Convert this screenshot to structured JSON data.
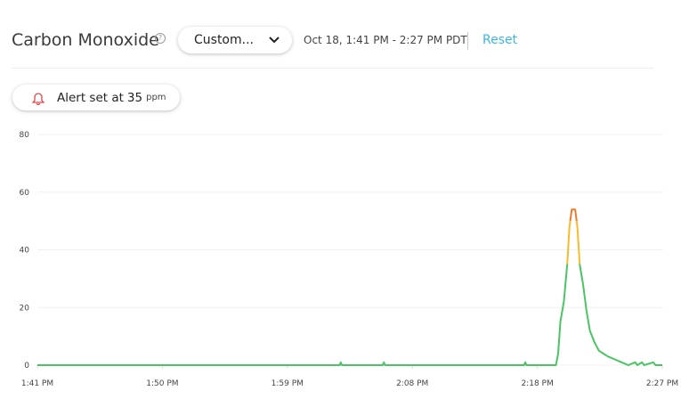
{
  "header": {
    "title": "Carbon Monoxide",
    "help_icon": "question-circle-icon",
    "range_select": "Custom...",
    "date_range": "Oct 18, 1:41 PM - 2:27 PM PDT",
    "reset_label": "Reset"
  },
  "alert": {
    "prefix": "Alert set at",
    "value": "35",
    "unit": "ppm",
    "icon": "bell-icon",
    "icon_color": "#e0474c"
  },
  "chart_data": {
    "type": "line",
    "ylim": [
      0,
      80
    ],
    "yticks": [
      "0",
      "20",
      "40",
      "60",
      "80"
    ],
    "xticks": [
      "1:41 PM",
      "1:50 PM",
      "1:59 PM",
      "2:08 PM",
      "2:18 PM",
      "2:27 PM"
    ],
    "xlim": [
      "13:41:00",
      "14:27:00"
    ],
    "grid": true,
    "colors": {
      "normal": "#4cc463",
      "elevated": "#f8bb2e",
      "high": "#ef7a28"
    },
    "thresholds": [
      35,
      50
    ],
    "points": [
      [
        "13:41:00",
        0
      ],
      [
        "14:03:15",
        0
      ],
      [
        "14:03:20",
        1
      ],
      [
        "14:03:25",
        0
      ],
      [
        "14:06:25",
        0
      ],
      [
        "14:06:30",
        1
      ],
      [
        "14:06:35",
        0
      ],
      [
        "14:16:50",
        0
      ],
      [
        "14:16:55",
        1
      ],
      [
        "14:17:00",
        0
      ],
      [
        "14:19:10",
        0
      ],
      [
        "14:19:20",
        4
      ],
      [
        "14:19:30",
        15
      ],
      [
        "14:19:45",
        22
      ],
      [
        "14:20:00",
        35
      ],
      [
        "14:20:10",
        48
      ],
      [
        "14:20:20",
        54
      ],
      [
        "14:20:35",
        54
      ],
      [
        "14:20:45",
        48
      ],
      [
        "14:20:55",
        35
      ],
      [
        "14:21:10",
        28
      ],
      [
        "14:21:25",
        19
      ],
      [
        "14:21:40",
        12
      ],
      [
        "14:22:00",
        8
      ],
      [
        "14:22:20",
        5
      ],
      [
        "14:22:40",
        4
      ],
      [
        "14:23:00",
        3
      ],
      [
        "14:23:30",
        2
      ],
      [
        "14:24:00",
        1
      ],
      [
        "14:24:30",
        0
      ],
      [
        "14:25:00",
        1
      ],
      [
        "14:25:10",
        0
      ],
      [
        "14:25:30",
        1
      ],
      [
        "14:25:40",
        0
      ],
      [
        "14:26:20",
        1
      ],
      [
        "14:26:30",
        0
      ],
      [
        "14:27:00",
        0
      ]
    ]
  }
}
